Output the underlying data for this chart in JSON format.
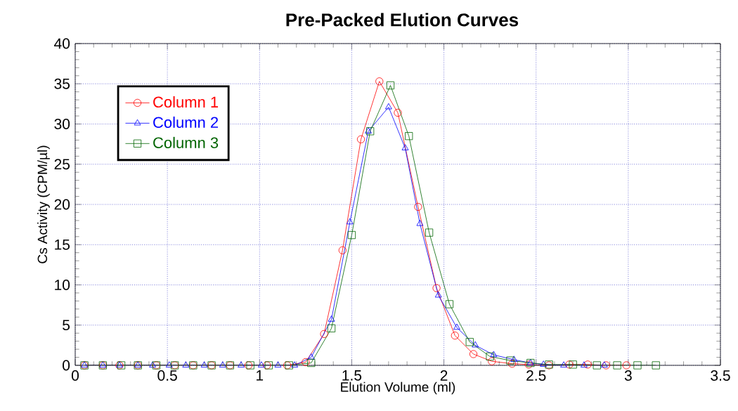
{
  "chart_data": {
    "type": "line",
    "title": "Pre-Packed Elution Curves",
    "xlabel": "Elution Volume (ml)",
    "ylabel": "Cs Activity (CPM/µl)",
    "xlim": [
      0,
      3.5
    ],
    "xticks": [
      0,
      0.5,
      1,
      1.5,
      2,
      2.5,
      3,
      3.5
    ],
    "ylim": [
      0,
      40
    ],
    "yticks": [
      0,
      5,
      10,
      15,
      20,
      25,
      30,
      35,
      40
    ],
    "grid": true,
    "legend": "top left",
    "line_style": "solid",
    "series": [
      {
        "name": "Column 1",
        "color": "#ff0000",
        "marker": "circle",
        "x": [
          0.05,
          0.15,
          0.24,
          0.34,
          0.44,
          0.54,
          0.64,
          0.74,
          0.84,
          0.94,
          1.04,
          1.15,
          1.25,
          1.35,
          1.45,
          1.55,
          1.65,
          1.75,
          1.86,
          1.96,
          2.06,
          2.16,
          2.26,
          2.37,
          2.46,
          2.57,
          2.68,
          2.78,
          2.88,
          2.99
        ],
        "values": [
          0,
          0,
          0,
          0,
          0,
          0,
          0,
          0,
          0,
          0,
          0,
          0,
          0.4,
          3.9,
          14.3,
          28.1,
          35.3,
          31.4,
          19.7,
          9.6,
          3.7,
          1.4,
          0.5,
          0.2,
          0.1,
          0,
          0.1,
          0.1,
          0,
          0
        ]
      },
      {
        "name": "Column 2",
        "color": "#0000ff",
        "marker": "triangle",
        "x": [
          0.05,
          0.15,
          0.24,
          0.34,
          0.42,
          0.51,
          0.6,
          0.7,
          0.8,
          0.9,
          1.01,
          1.1,
          1.19,
          1.28,
          1.39,
          1.49,
          1.59,
          1.7,
          1.79,
          1.87,
          1.97,
          2.07,
          2.17,
          2.27,
          2.38,
          2.47,
          2.54,
          2.65,
          2.76,
          2.87
        ],
        "values": [
          0,
          0,
          0,
          0,
          0,
          0,
          0,
          0,
          0,
          0,
          0,
          0,
          0,
          1.0,
          5.7,
          17.8,
          29.1,
          32.1,
          27.0,
          17.6,
          8.7,
          4.7,
          2.5,
          1.3,
          0.7,
          0.3,
          0.1,
          0,
          0,
          0
        ]
      },
      {
        "name": "Column 3",
        "color": "#006400",
        "marker": "square",
        "x": [
          0.05,
          0.15,
          0.25,
          0.34,
          0.44,
          0.54,
          0.64,
          0.74,
          0.84,
          0.95,
          1.05,
          1.16,
          1.28,
          1.39,
          1.5,
          1.6,
          1.71,
          1.81,
          1.92,
          2.03,
          2.14,
          2.25,
          2.36,
          2.47,
          2.57,
          2.7,
          2.83,
          2.94,
          3.05,
          3.15
        ],
        "values": [
          0,
          0,
          0,
          0,
          0,
          0,
          0,
          0,
          0,
          0,
          0,
          0,
          0.3,
          4.6,
          16.2,
          29.1,
          34.8,
          28.5,
          16.5,
          7.6,
          2.9,
          1.1,
          0.6,
          0.3,
          0.1,
          0.1,
          0,
          0,
          0,
          0
        ]
      }
    ]
  }
}
